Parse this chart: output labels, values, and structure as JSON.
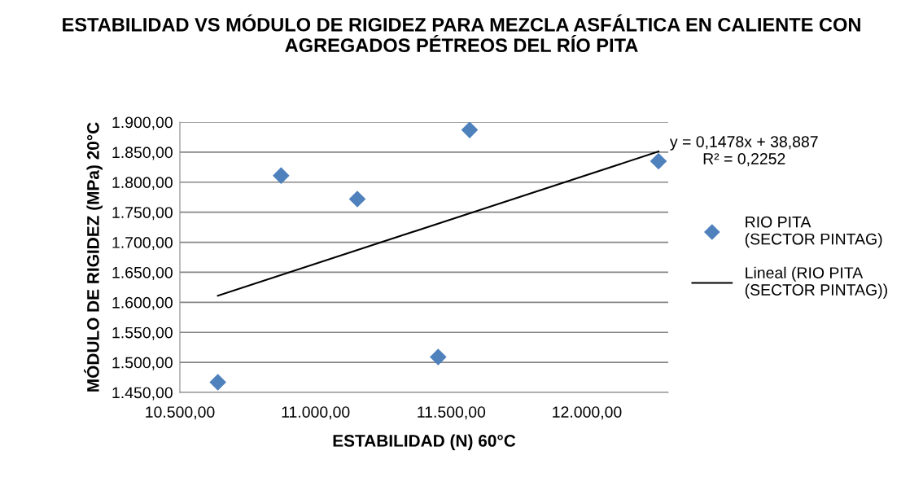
{
  "chart_data": {
    "type": "scatter",
    "title": "ESTABILIDAD VS MÓDULO DE RIGIDEZ PARA MEZCLA ASFÁLTICA EN CALIENTE CON AGREGADOS PÉTREOS DEL RÍO PITA",
    "xlabel": "ESTABILIDAD (N) 60°C",
    "ylabel": "MÓDULO DE RIGIDEZ (MPa) 20°C",
    "series": [
      {
        "name": "RIO PITA (SECTOR PINTAG)",
        "color": "#4f81bd",
        "marker": "diamond",
        "x": [
          10640,
          10873,
          11154,
          11452,
          11568,
          12264
        ],
        "values": [
          1467,
          1811,
          1772,
          1509,
          1887,
          1835
        ]
      },
      {
        "name": "Lineal (RIO PITA (SECTOR PINTAG))",
        "type": "line",
        "color": "#000000",
        "marker": "none",
        "line_style": "solid",
        "x": [
          10640,
          12264
        ],
        "values": [
          1611,
          1851
        ]
      }
    ],
    "annotations": [
      {
        "text": "y = 0,1478x + 38,887\nR² = 0,2252",
        "x": 12264,
        "y": 1851
      }
    ],
    "xlim": [
      10500,
      12300
    ],
    "xticks": [
      {
        "value": 10500,
        "label": "10.500,00"
      },
      {
        "value": 11000,
        "label": "11.000,00"
      },
      {
        "value": 11500,
        "label": "11.500,00"
      },
      {
        "value": 12000,
        "label": "12.000,00"
      }
    ],
    "ylim": [
      1450,
      1900
    ],
    "yticks": [
      {
        "value": 1450,
        "label": "1.450,00"
      },
      {
        "value": 1500,
        "label": "1.500,00"
      },
      {
        "value": 1550,
        "label": "1.550,00"
      },
      {
        "value": 1600,
        "label": "1.600,00"
      },
      {
        "value": 1650,
        "label": "1.650,00"
      },
      {
        "value": 1700,
        "label": "1.700,00"
      },
      {
        "value": 1750,
        "label": "1.750,00"
      },
      {
        "value": 1800,
        "label": "1.800,00"
      },
      {
        "value": 1850,
        "label": "1.850,00"
      },
      {
        "value": 1900,
        "label": "1.900,00"
      }
    ],
    "grid": "y",
    "legend": "right"
  }
}
